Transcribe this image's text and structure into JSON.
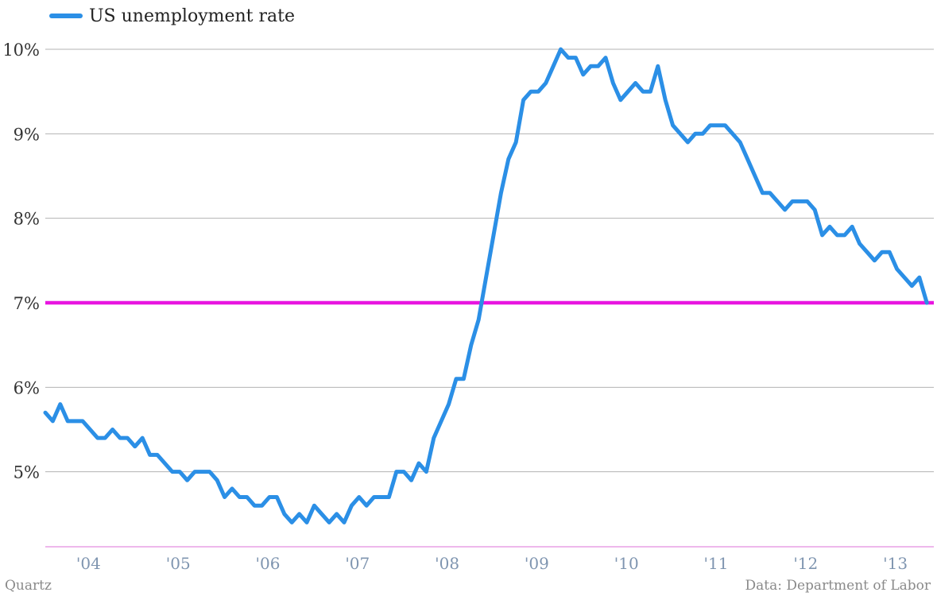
{
  "chart_data": {
    "type": "line",
    "title": "",
    "xlabel": "",
    "ylabel": "",
    "x_range": [
      "2003-07",
      "2013-06"
    ],
    "ylim": [
      4.1,
      10.2
    ],
    "grid": true,
    "legend_position": "top-left",
    "y_ticks": [
      {
        "value": 5,
        "label": "5%"
      },
      {
        "value": 6,
        "label": "6%"
      },
      {
        "value": 7,
        "label": "7%"
      },
      {
        "value": 8,
        "label": "8%"
      },
      {
        "value": 9,
        "label": "9%"
      },
      {
        "value": 10,
        "label": "10%"
      }
    ],
    "x_ticks": [
      {
        "value": "2004-01",
        "label": "'04"
      },
      {
        "value": "2005-01",
        "label": "'05"
      },
      {
        "value": "2006-01",
        "label": "'06"
      },
      {
        "value": "2007-01",
        "label": "'07"
      },
      {
        "value": "2008-01",
        "label": "'08"
      },
      {
        "value": "2009-01",
        "label": "'09"
      },
      {
        "value": "2010-01",
        "label": "'10"
      },
      {
        "value": "2011-01",
        "label": "'11"
      },
      {
        "value": "2012-01",
        "label": "'12"
      },
      {
        "value": "2013-01",
        "label": "'13"
      }
    ],
    "reference_line": {
      "value": 7,
      "color": "#e815e0"
    },
    "series": [
      {
        "name": "US unemployment rate",
        "color": "#2b8fe6",
        "start": "2003-07",
        "values": [
          5.7,
          5.6,
          5.8,
          5.6,
          5.6,
          5.6,
          5.5,
          5.4,
          5.4,
          5.5,
          5.4,
          5.4,
          5.3,
          5.4,
          5.2,
          5.2,
          5.1,
          5.0,
          5.0,
          4.9,
          5.0,
          5.0,
          5.0,
          4.9,
          4.7,
          4.8,
          4.7,
          4.7,
          4.6,
          4.6,
          4.7,
          4.7,
          4.5,
          4.4,
          4.5,
          4.4,
          4.6,
          4.5,
          4.4,
          4.5,
          4.4,
          4.6,
          4.7,
          4.6,
          4.7,
          4.7,
          4.7,
          5.0,
          5.0,
          4.9,
          5.1,
          5.0,
          5.4,
          5.6,
          5.8,
          6.1,
          6.1,
          6.5,
          6.8,
          7.3,
          7.8,
          8.3,
          8.7,
          8.9,
          9.4,
          9.5,
          9.5,
          9.6,
          9.8,
          10.0,
          9.9,
          9.9,
          9.7,
          9.8,
          9.8,
          9.9,
          9.6,
          9.4,
          9.5,
          9.6,
          9.5,
          9.5,
          9.8,
          9.4,
          9.1,
          9.0,
          8.9,
          9.0,
          9.0,
          9.1,
          9.1,
          9.1,
          9.0,
          8.9,
          8.7,
          8.5,
          8.3,
          8.3,
          8.2,
          8.1,
          8.2,
          8.2,
          8.2,
          8.1,
          7.8,
          7.9,
          7.8,
          7.8,
          7.9,
          7.7,
          7.6,
          7.5,
          7.6,
          7.6,
          7.4,
          7.3,
          7.2,
          7.3,
          7.0
        ]
      }
    ]
  },
  "legend": {
    "label": "US unemployment rate",
    "color": "#2b8fe6"
  },
  "credit": "Quartz",
  "source": "Data: Department of Labor"
}
